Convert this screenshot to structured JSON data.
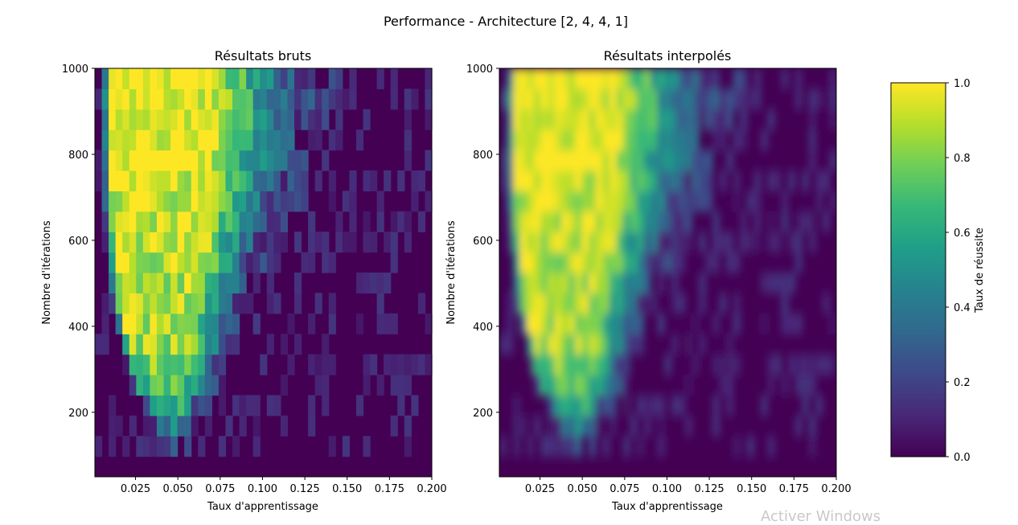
{
  "figure": {
    "suptitle": "Performance - Architecture [2, 4, 4, 1]",
    "watermark": "Activer Windows"
  },
  "colormap": {
    "name": "viridis",
    "stops": [
      "#440154",
      "#482878",
      "#3e4989",
      "#31688e",
      "#26828e",
      "#1f9e89",
      "#35b779",
      "#6ece58",
      "#b5de2b",
      "#fde725"
    ]
  },
  "colorbar": {
    "label": "Taux de réussite",
    "range": [
      0.0,
      1.0
    ],
    "ticks": [
      0.0,
      0.2,
      0.4,
      0.6,
      0.8,
      1.0
    ],
    "tick_labels": [
      "0.0",
      "0.2",
      "0.4",
      "0.6",
      "0.8",
      "1.0"
    ]
  },
  "chart_data": [
    {
      "type": "heatmap",
      "title": "Résultats bruts",
      "xlabel": "Taux d'apprentissage",
      "ylabel": "Nombre d'itérations",
      "xlim": [
        0.001,
        0.2
      ],
      "ylim": [
        50,
        1000
      ],
      "xticks": [
        0.025,
        0.05,
        0.075,
        0.1,
        0.125,
        0.15,
        0.175,
        0.2
      ],
      "xtick_labels": [
        "0.025",
        "0.050",
        "0.075",
        "0.100",
        "0.125",
        "0.150",
        "0.175",
        "0.200"
      ],
      "yticks": [
        200,
        400,
        600,
        800,
        1000
      ],
      "ytick_labels": [
        "200",
        "400",
        "600",
        "800",
        "1000"
      ],
      "rendering": "nearest",
      "value_range": [
        0,
        1
      ],
      "x_bins": 49,
      "y_bins": 20,
      "profile_x_units": "learning_rate",
      "profile_y_units": "iterations",
      "profile": {
        "onset_x": [
          0.003,
          0.004,
          0.004,
          0.005,
          0.006,
          0.008,
          0.012,
          0.018,
          0.03,
          0.045
        ],
        "onset_y": [
          1000,
          900,
          800,
          700,
          600,
          500,
          400,
          300,
          200,
          100
        ],
        "plateau_end_x": [
          0.065,
          0.07,
          0.07,
          0.068,
          0.065,
          0.062,
          0.058,
          0.056,
          0.05,
          0.04
        ],
        "decay_end_x": [
          0.17,
          0.16,
          0.15,
          0.14,
          0.125,
          0.11,
          0.1,
          0.09,
          0.08,
          0.065
        ],
        "peak_level": [
          1.0,
          1.0,
          0.97,
          0.95,
          0.93,
          0.9,
          0.85,
          0.78,
          0.55,
          0.25
        ]
      }
    },
    {
      "type": "heatmap",
      "title": "Résultats interpolés",
      "xlabel": "Taux d'apprentissage",
      "ylabel": "Nombre d'itérations",
      "xlim": [
        0.001,
        0.2
      ],
      "ylim": [
        50,
        1000
      ],
      "xticks": [
        0.025,
        0.05,
        0.075,
        0.1,
        0.125,
        0.15,
        0.175,
        0.2
      ],
      "xtick_labels": [
        "0.025",
        "0.050",
        "0.075",
        "0.100",
        "0.125",
        "0.150",
        "0.175",
        "0.200"
      ],
      "yticks": [
        200,
        400,
        600,
        800,
        1000
      ],
      "ytick_labels": [
        "200",
        "400",
        "600",
        "800",
        "1000"
      ],
      "rendering": "interpolated",
      "value_range": [
        0,
        1
      ]
    }
  ]
}
